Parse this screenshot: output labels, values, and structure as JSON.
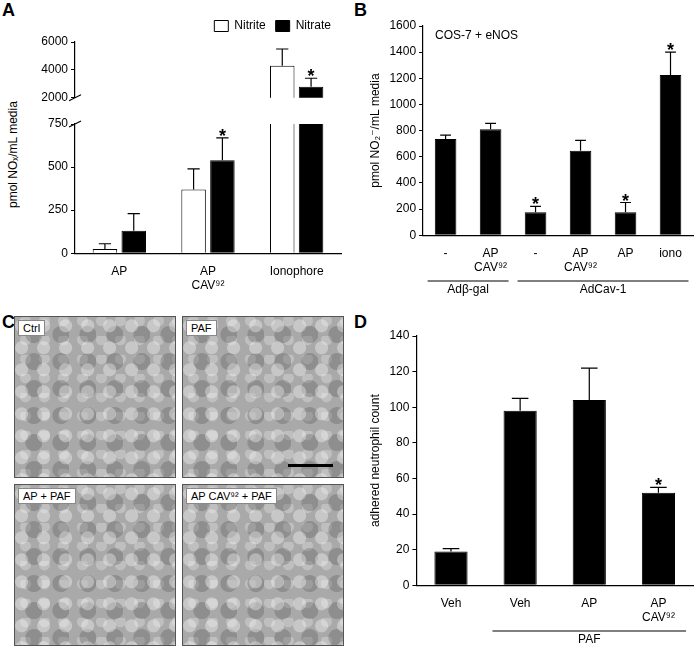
{
  "chart_data": [
    {
      "panel": "A",
      "type": "bar",
      "y_label": "pmol NOₓ/mL media",
      "categories": [
        "AP",
        "AP CAV⁹²",
        "Ionophore"
      ],
      "series": [
        {
          "name": "Nitrite",
          "color": "#ffffff",
          "values": [
            25,
            370,
            4300
          ],
          "errors": [
            30,
            120,
            1200
          ]
        },
        {
          "name": "Nitrate",
          "color": "#000000",
          "values": [
            130,
            540,
            2800
          ],
          "errors": [
            100,
            130,
            600
          ]
        }
      ],
      "ylim": [
        0,
        6000
      ],
      "y_break": [
        750,
        2000
      ],
      "yticks": [
        0,
        250,
        500,
        750,
        2000,
        4000,
        6000
      ],
      "grid": false,
      "legend": "upper right",
      "annotations": [
        {
          "index": 1,
          "series": "Nitrate",
          "text": "*"
        },
        {
          "index": 2,
          "series": "Nitrate",
          "text": "*"
        }
      ]
    },
    {
      "panel": "B",
      "type": "bar",
      "title": "COS-7 + eNOS",
      "y_label": "pmol NO₂⁻/mL media",
      "categories": [
        "-",
        "AP CAV⁹²",
        "-",
        "AP CAV⁹²",
        "AP",
        "iono"
      ],
      "values": [
        735,
        810,
        175,
        645,
        175,
        1225
      ],
      "errors": [
        30,
        45,
        45,
        80,
        75,
        175
      ],
      "color": "#000000",
      "ylim": [
        0,
        1600
      ],
      "yticks": [
        0,
        200,
        400,
        600,
        800,
        1000,
        1200,
        1400,
        1600
      ],
      "grid": false,
      "groups": [
        {
          "label": "Adβ-gal",
          "indices": [
            0,
            1
          ]
        },
        {
          "label": "AdCav-1",
          "indices": [
            2,
            3,
            4,
            5
          ]
        }
      ],
      "annotations": [
        {
          "index": 2,
          "text": "*"
        },
        {
          "index": 4,
          "text": "*"
        },
        {
          "index": 5,
          "text": "*"
        }
      ]
    },
    {
      "panel": "D",
      "type": "bar",
      "y_label": "adhered neutrophil count",
      "categories": [
        "Veh",
        "Veh",
        "AP",
        "AP CAV⁹²"
      ],
      "values": [
        19,
        98,
        104,
        52
      ],
      "errors": [
        1.5,
        7,
        18,
        3
      ],
      "color": "#000000",
      "ylim": [
        0,
        140
      ],
      "yticks": [
        0,
        20,
        40,
        60,
        80,
        100,
        120,
        140
      ],
      "grid": false,
      "groups": [
        {
          "label": "PAF",
          "indices": [
            1,
            2,
            3
          ]
        }
      ],
      "annotations": [
        {
          "index": 3,
          "text": "*"
        }
      ]
    }
  ],
  "panel_c": {
    "panel": "C",
    "images": [
      "Ctrl",
      "PAF",
      "AP + PAF",
      "AP CAV⁹² + PAF"
    ]
  }
}
